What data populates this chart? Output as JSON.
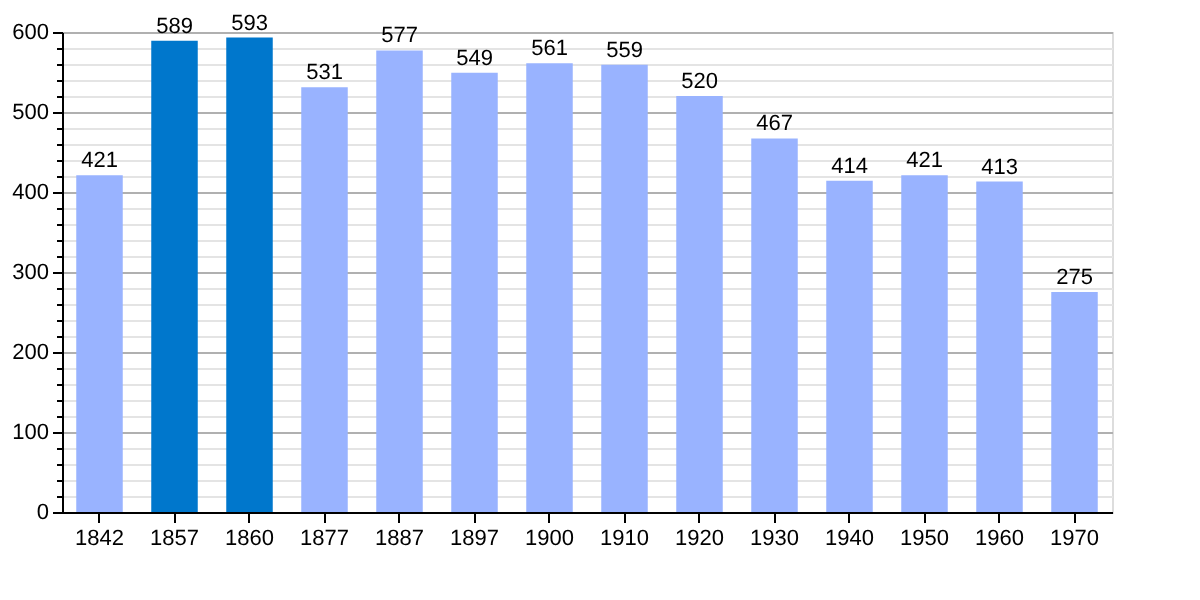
{
  "chart_data": {
    "type": "bar",
    "categories": [
      "1842",
      "1857",
      "1860",
      "1877",
      "1887",
      "1897",
      "1900",
      "1910",
      "1920",
      "1930",
      "1940",
      "1950",
      "1960",
      "1970"
    ],
    "values": [
      421,
      589,
      593,
      531,
      577,
      549,
      561,
      559,
      520,
      467,
      414,
      421,
      413,
      275
    ],
    "colors": [
      "#99b3ff",
      "#0077cc",
      "#0077cc",
      "#99b3ff",
      "#99b3ff",
      "#99b3ff",
      "#99b3ff",
      "#99b3ff",
      "#99b3ff",
      "#99b3ff",
      "#99b3ff",
      "#99b3ff",
      "#99b3ff",
      "#99b3ff"
    ],
    "ylim": [
      0,
      600
    ],
    "yticks": [
      0,
      {
        "value": 20,
        "label": null
      },
      {
        "value": 40,
        "label": null
      },
      {
        "value": 60,
        "label": null
      },
      {
        "value": 80,
        "label": null
      },
      100,
      {
        "value": 120,
        "label": null
      },
      {
        "value": 140,
        "label": null
      },
      {
        "value": 160,
        "label": null
      },
      {
        "value": 180,
        "label": null
      },
      200,
      {
        "value": 220,
        "label": null
      },
      {
        "value": 240,
        "label": null
      },
      {
        "value": 260,
        "label": null
      },
      {
        "value": 280,
        "label": null
      },
      300,
      {
        "value": 320,
        "label": null
      },
      {
        "value": 340,
        "label": null
      },
      {
        "value": 360,
        "label": null
      },
      {
        "value": 380,
        "label": null
      },
      400,
      {
        "value": 420,
        "label": null
      },
      {
        "value": 440,
        "label": null
      },
      {
        "value": 460,
        "label": null
      },
      {
        "value": 480,
        "label": null
      },
      500,
      {
        "value": 520,
        "label": null
      },
      {
        "value": 540,
        "label": null
      },
      {
        "value": 560,
        "label": null
      },
      {
        "value": 580,
        "label": null
      },
      600
    ],
    "grid": true,
    "data_labels": true
  }
}
